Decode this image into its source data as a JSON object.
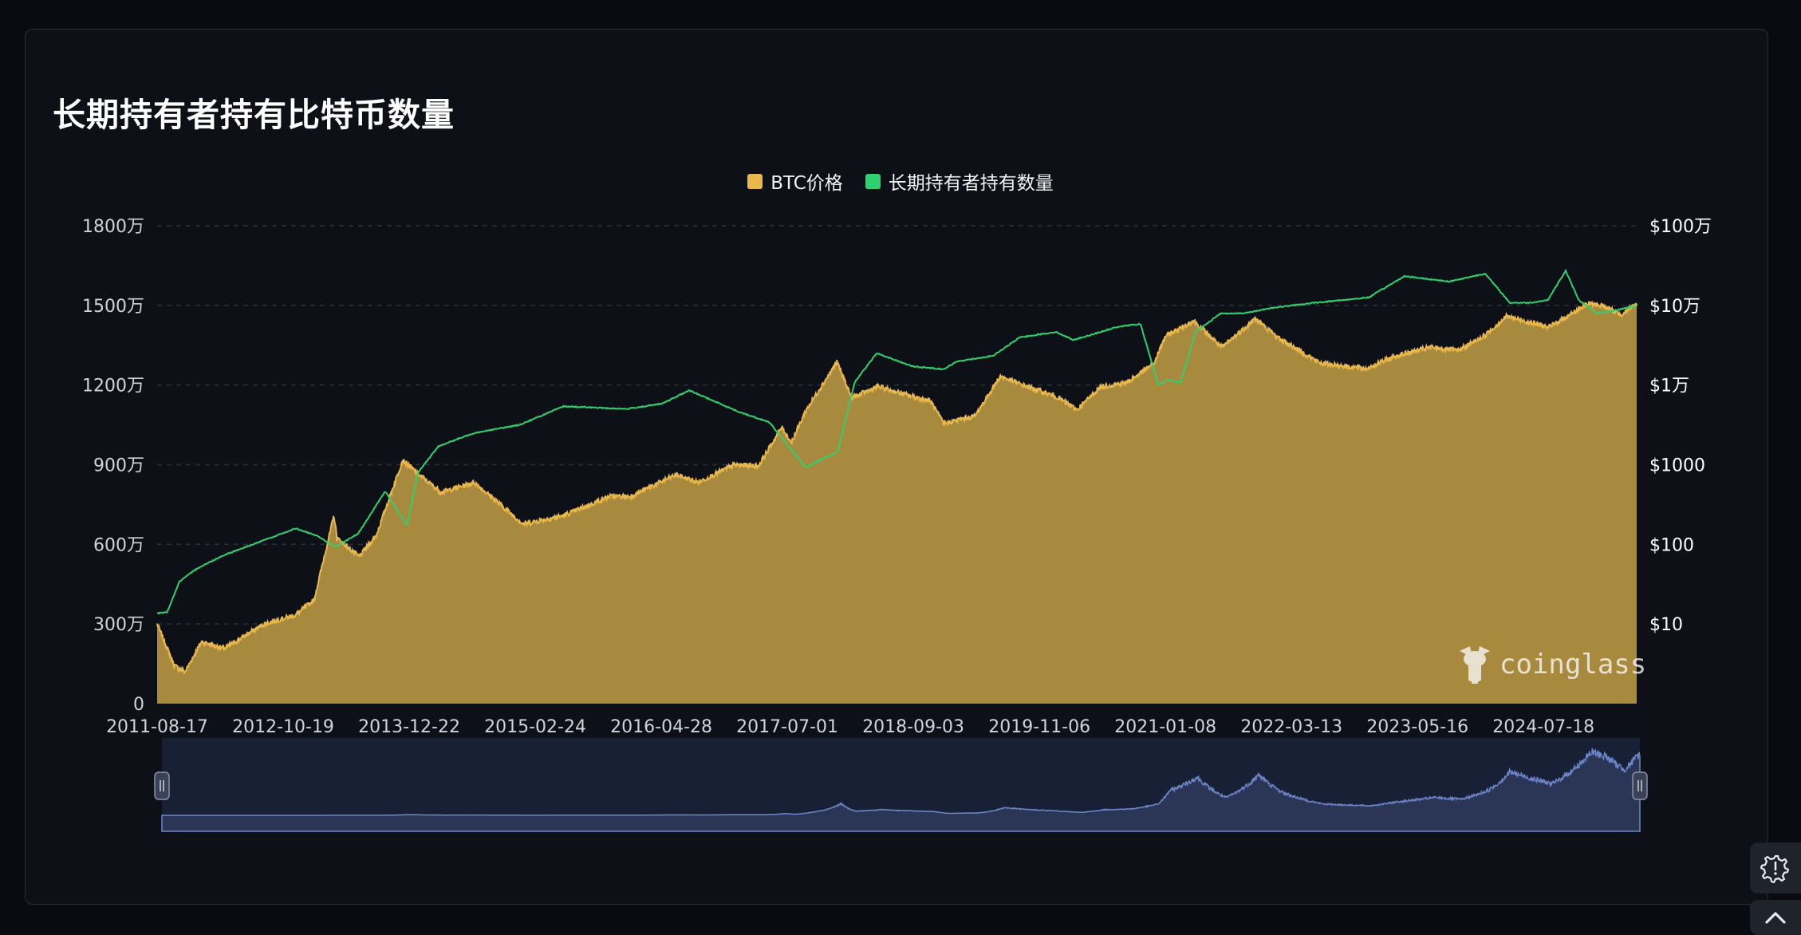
{
  "title": "长期持有者持有比特币数量",
  "colors": {
    "btc_price": "#e9b84c",
    "btc_fill": "#a88a3f",
    "lth_supply": "#2fd06f",
    "background": "#0d1017",
    "navigator": "#2b3555"
  },
  "legend": [
    {
      "label": "BTC价格",
      "color": "#e9b84c"
    },
    {
      "label": "长期持有者持有数量",
      "color": "#2fd06f"
    }
  ],
  "watermark": "coinglass",
  "icons": {
    "settings": "settings-gear-icon",
    "scroll_top": "chevron-up-icon"
  },
  "chart_data": {
    "type": "area",
    "title": "长期持有者持有比特币数量",
    "x_ticks": [
      "2011-08-17",
      "2012-10-19",
      "2013-12-22",
      "2015-02-24",
      "2016-04-28",
      "2017-07-01",
      "2018-09-03",
      "2019-11-06",
      "2021-01-08",
      "2022-03-13",
      "2023-05-16",
      "2024-07-18"
    ],
    "x_range": [
      "2011-08-17",
      "2025-05-31"
    ],
    "y_left": {
      "ticks": [
        "0",
        "300万",
        "600万",
        "900万",
        "1200万",
        "1500万",
        "1800万"
      ],
      "range": [
        0,
        18000000
      ]
    },
    "y_right": {
      "scale": "log",
      "ticks": [
        "$10",
        "$100",
        "$1000",
        "$1万",
        "$10万",
        "$100万"
      ],
      "range": [
        1,
        1000000
      ]
    },
    "grid": true,
    "legend_position": "top-center",
    "series": [
      {
        "name": "BTC价格",
        "axis": "right",
        "type": "area",
        "x": [
          "2011-08-17",
          "2011-10-15",
          "2011-11-20",
          "2012-01-15",
          "2012-04-01",
          "2012-08-15",
          "2012-12-01",
          "2013-02-01",
          "2013-04-10",
          "2013-04-20",
          "2013-07-05",
          "2013-09-01",
          "2013-11-30",
          "2014-01-15",
          "2014-04-10",
          "2014-08-01",
          "2015-01-14",
          "2015-06-01",
          "2015-11-04",
          "2016-01-15",
          "2016-06-17",
          "2016-09-01",
          "2017-01-01",
          "2017-03-25",
          "2017-06-12",
          "2017-07-15",
          "2017-09-01",
          "2017-12-17",
          "2018-02-06",
          "2018-05-05",
          "2018-08-01",
          "2018-11-01",
          "2018-12-15",
          "2019-04-01",
          "2019-06-26",
          "2019-09-01",
          "2020-01-01",
          "2020-03-13",
          "2020-06-01",
          "2020-09-01",
          "2020-12-01",
          "2021-01-08",
          "2021-04-14",
          "2021-07-20",
          "2021-11-10",
          "2022-02-01",
          "2022-06-18",
          "2022-11-21",
          "2023-03-01",
          "2023-07-01",
          "2023-10-01",
          "2024-01-01",
          "2024-03-14",
          "2024-08-05",
          "2024-11-11",
          "2024-12-17",
          "2025-02-01",
          "2025-04-08",
          "2025-05-31"
        ],
        "values": [
          10,
          3,
          2.5,
          6,
          4.9,
          10,
          13,
          20,
          230,
          120,
          70,
          130,
          1150,
          800,
          450,
          600,
          180,
          230,
          400,
          400,
          750,
          600,
          1000,
          970,
          2950,
          1900,
          4700,
          19500,
          6900,
          9600,
          7700,
          6300,
          3300,
          4100,
          12900,
          10300,
          7200,
          4900,
          9500,
          10800,
          19000,
          41000,
          64000,
          29800,
          68000,
          38000,
          19000,
          16000,
          23000,
          30000,
          27000,
          42000,
          73000,
          53000,
          88000,
          106000,
          100000,
          77000,
          104000
        ]
      },
      {
        "name": "长期持有者持有数量",
        "axis": "left",
        "type": "line",
        "x": [
          "2011-08-17",
          "2011-09-20",
          "2011-11-01",
          "2012-01-01",
          "2012-04-01",
          "2012-08-01",
          "2012-12-01",
          "2013-02-15",
          "2013-04-15",
          "2013-07-01",
          "2013-10-01",
          "2013-12-15",
          "2014-01-20",
          "2014-04-01",
          "2014-08-01",
          "2015-01-01",
          "2015-06-01",
          "2016-01-01",
          "2016-05-01",
          "2016-08-01",
          "2017-01-15",
          "2017-05-01",
          "2017-09-01",
          "2017-12-20",
          "2018-02-15",
          "2018-05-01",
          "2018-09-01",
          "2018-12-15",
          "2019-02-01",
          "2019-06-01",
          "2019-09-01",
          "2020-01-01",
          "2020-03-01",
          "2020-08-01",
          "2020-10-15",
          "2020-12-15",
          "2021-01-15",
          "2021-03-01",
          "2021-04-20",
          "2021-07-15",
          "2021-10-01",
          "2022-01-01",
          "2022-06-01",
          "2022-12-01",
          "2023-04-01",
          "2023-09-01",
          "2024-01-01",
          "2024-03-25",
          "2024-06-01",
          "2024-08-01",
          "2024-10-01",
          "2024-11-15",
          "2025-01-15",
          "2025-03-15",
          "2025-05-31"
        ],
        "values": [
          3400000,
          3450000,
          4600000,
          5100000,
          5600000,
          6100000,
          6600000,
          6300000,
          5900000,
          6400000,
          8000000,
          6700000,
          8700000,
          9700000,
          10200000,
          10500000,
          11200000,
          11100000,
          11300000,
          11800000,
          11000000,
          10600000,
          8900000,
          9500000,
          12100000,
          13200000,
          12700000,
          12600000,
          12900000,
          13100000,
          13800000,
          14000000,
          13700000,
          14200000,
          14300000,
          12000000,
          12200000,
          12100000,
          14000000,
          14700000,
          14700000,
          14900000,
          15100000,
          15300000,
          16100000,
          15900000,
          16200000,
          15100000,
          15100000,
          15200000,
          16300000,
          15200000,
          14700000,
          14800000,
          15000000
        ]
      }
    ]
  }
}
